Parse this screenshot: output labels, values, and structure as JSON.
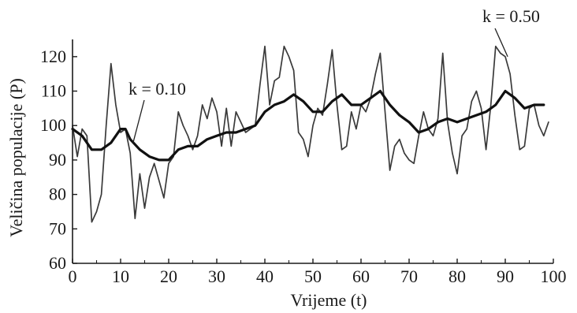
{
  "chart_data": {
    "type": "line",
    "title": "",
    "xlabel": "Vrijeme (t)",
    "ylabel": "Veličina populacije (P)",
    "xlim": [
      0,
      100
    ],
    "ylim": [
      60,
      125
    ],
    "xticks": [
      0,
      10,
      20,
      30,
      40,
      50,
      60,
      70,
      80,
      90,
      100
    ],
    "yticks": [
      60,
      70,
      80,
      90,
      100,
      110,
      120
    ],
    "grid": false,
    "legend": "none",
    "series": [
      {
        "name": "",
        "label_text": "k = 0.50",
        "color": "#3a3a3a",
        "points": [
          [
            0,
            100
          ],
          [
            1,
            91
          ],
          [
            2,
            99
          ],
          [
            3,
            97
          ],
          [
            4,
            72
          ],
          [
            5,
            75
          ],
          [
            6,
            80
          ],
          [
            7,
            100
          ],
          [
            8,
            118
          ],
          [
            9,
            106
          ],
          [
            10,
            98
          ],
          [
            11,
            99
          ],
          [
            12,
            92
          ],
          [
            13,
            73
          ],
          [
            14,
            86
          ],
          [
            15,
            76
          ],
          [
            16,
            85
          ],
          [
            17,
            89
          ],
          [
            18,
            84
          ],
          [
            19,
            79
          ],
          [
            20,
            89
          ],
          [
            21,
            91
          ],
          [
            22,
            104
          ],
          [
            23,
            100
          ],
          [
            24,
            97
          ],
          [
            25,
            93
          ],
          [
            26,
            97
          ],
          [
            27,
            106
          ],
          [
            28,
            102
          ],
          [
            29,
            108
          ],
          [
            30,
            104
          ],
          [
            31,
            94
          ],
          [
            32,
            105
          ],
          [
            33,
            94
          ],
          [
            34,
            104
          ],
          [
            35,
            101
          ],
          [
            36,
            98
          ],
          [
            37,
            99
          ],
          [
            38,
            100
          ],
          [
            39,
            112
          ],
          [
            40,
            123
          ],
          [
            41,
            106
          ],
          [
            42,
            113
          ],
          [
            43,
            114
          ],
          [
            44,
            123
          ],
          [
            45,
            120
          ],
          [
            46,
            116
          ],
          [
            47,
            98
          ],
          [
            48,
            96
          ],
          [
            49,
            91
          ],
          [
            50,
            100
          ],
          [
            51,
            105
          ],
          [
            52,
            103
          ],
          [
            53,
            112
          ],
          [
            54,
            122
          ],
          [
            55,
            106
          ],
          [
            56,
            93
          ],
          [
            57,
            94
          ],
          [
            58,
            104
          ],
          [
            59,
            99
          ],
          [
            60,
            106
          ],
          [
            61,
            104
          ],
          [
            62,
            108
          ],
          [
            63,
            115
          ],
          [
            64,
            121
          ],
          [
            65,
            104
          ],
          [
            66,
            87
          ],
          [
            67,
            94
          ],
          [
            68,
            96
          ],
          [
            69,
            92
          ],
          [
            70,
            90
          ],
          [
            71,
            89
          ],
          [
            72,
            97
          ],
          [
            73,
            104
          ],
          [
            74,
            99
          ],
          [
            75,
            97
          ],
          [
            76,
            102
          ],
          [
            77,
            121
          ],
          [
            78,
            101
          ],
          [
            79,
            92
          ],
          [
            80,
            86
          ],
          [
            81,
            97
          ],
          [
            82,
            99
          ],
          [
            83,
            107
          ],
          [
            84,
            110
          ],
          [
            85,
            105
          ],
          [
            86,
            93
          ],
          [
            87,
            106
          ],
          [
            88,
            123
          ],
          [
            89,
            121
          ],
          [
            90,
            120
          ],
          [
            91,
            115
          ],
          [
            92,
            103
          ],
          [
            93,
            93
          ],
          [
            94,
            94
          ],
          [
            95,
            105
          ],
          [
            96,
            106
          ],
          [
            97,
            100
          ],
          [
            98,
            97
          ],
          [
            99,
            101
          ]
        ]
      },
      {
        "name": "",
        "label_text": "k = 0.10",
        "color": "#111111",
        "points": [
          [
            0,
            99
          ],
          [
            2,
            97
          ],
          [
            4,
            93
          ],
          [
            6,
            93
          ],
          [
            8,
            95
          ],
          [
            10,
            99
          ],
          [
            11,
            99
          ],
          [
            12,
            96
          ],
          [
            14,
            93
          ],
          [
            16,
            91
          ],
          [
            18,
            90
          ],
          [
            20,
            90
          ],
          [
            22,
            93
          ],
          [
            24,
            94
          ],
          [
            26,
            94
          ],
          [
            28,
            96
          ],
          [
            30,
            97
          ],
          [
            32,
            98
          ],
          [
            34,
            98
          ],
          [
            36,
            99
          ],
          [
            38,
            100
          ],
          [
            40,
            104
          ],
          [
            42,
            106
          ],
          [
            44,
            107
          ],
          [
            46,
            109
          ],
          [
            48,
            107
          ],
          [
            50,
            104
          ],
          [
            52,
            104
          ],
          [
            54,
            107
          ],
          [
            56,
            109
          ],
          [
            58,
            106
          ],
          [
            60,
            106
          ],
          [
            62,
            108
          ],
          [
            64,
            110
          ],
          [
            66,
            106
          ],
          [
            68,
            103
          ],
          [
            70,
            101
          ],
          [
            72,
            98
          ],
          [
            74,
            99
          ],
          [
            76,
            101
          ],
          [
            78,
            102
          ],
          [
            80,
            101
          ],
          [
            82,
            102
          ],
          [
            84,
            103
          ],
          [
            86,
            104
          ],
          [
            88,
            106
          ],
          [
            90,
            110
          ],
          [
            92,
            108
          ],
          [
            94,
            105
          ],
          [
            96,
            106
          ],
          [
            98,
            106
          ]
        ]
      }
    ]
  }
}
